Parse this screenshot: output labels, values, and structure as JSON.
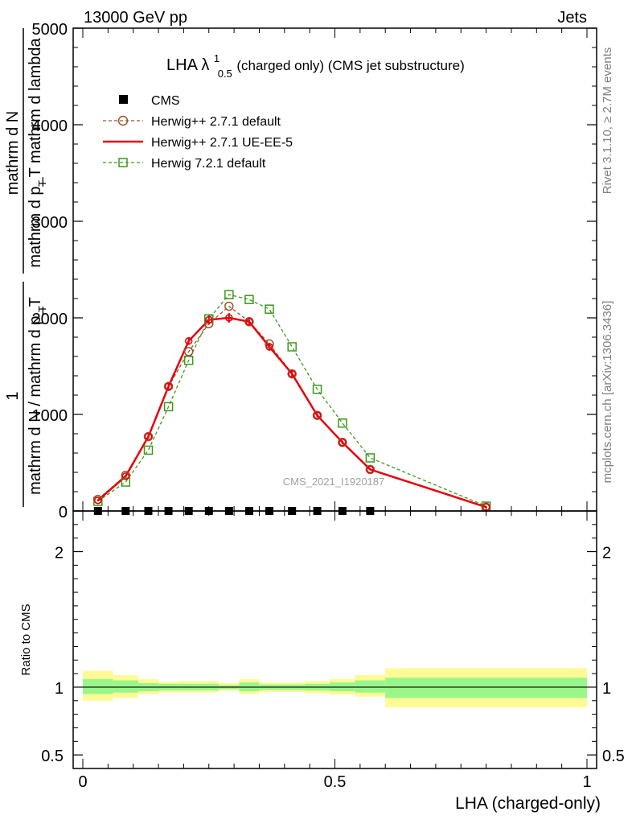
{
  "header": {
    "left": "13000 GeV pp",
    "right": "Jets"
  },
  "side_labels": {
    "rivet": "Rivet 3.1.10, ≥ 2.7M events",
    "mcplots": "mcplots.cern.ch [arXiv:1306.3436]"
  },
  "y_axis_label": {
    "one": "1",
    "denominator": "mathrm d N / mathrm d p_T",
    "numerator_line1": "mathrm d N",
    "numerator_line2": "mathrm d p_T mathrm d lambda",
    "sub_T_1": "T",
    "sub_T_2": "T"
  },
  "colors": {
    "cms": "#000000",
    "herwig_default": "#a0522d",
    "herwig_ueee5": "#e8000b",
    "herwig72": "#3a9a1a",
    "band_inner": "#99f78a",
    "band_outer": "#fffa96"
  },
  "chart_data": [
    {
      "type": "line",
      "title": "LHA λ",
      "title_sup": "1",
      "title_sub": "0.5",
      "title_suffix": " (charged only) (CMS jet substructure)",
      "watermark": "CMS_2021_I1920187",
      "xlabel": "LHA (charged-only)",
      "xlim": [
        0,
        1
      ],
      "ylim": [
        0,
        5000
      ],
      "y_ticks": [
        0,
        1000,
        2000,
        3000,
        4000,
        5000
      ],
      "y_tick_labels": [
        "0",
        "1000",
        "2000",
        "3000",
        "4000",
        "5000"
      ],
      "legend_position": "top-left",
      "legend": [
        "CMS",
        "Herwig++ 2.7.1 default",
        "Herwig++ 2.7.1 UE-EE-5",
        "Herwig 7.2.1 default"
      ],
      "series": [
        {
          "name": "CMS",
          "style": "square-marker",
          "x": [
            0.03,
            0.085,
            0.13,
            0.17,
            0.21,
            0.25,
            0.29,
            0.33,
            0.37,
            0.415,
            0.465,
            0.515,
            0.57
          ],
          "values": [
            0,
            0,
            0,
            0,
            0,
            0,
            0,
            0,
            0,
            0,
            0,
            0,
            0
          ]
        },
        {
          "name": "Herwig++ 2.7.1 default",
          "style": "dashed-circle",
          "x": [
            0.03,
            0.085,
            0.13,
            0.17,
            0.21,
            0.25,
            0.29,
            0.33,
            0.37,
            0.415,
            0.465,
            0.515,
            0.57,
            0.8
          ],
          "values": [
            120,
            370,
            770,
            1290,
            1650,
            1940,
            2120,
            1960,
            1730,
            1420,
            990,
            710,
            430,
            40
          ]
        },
        {
          "name": "Herwig++ 2.7.1 UE-EE-5",
          "style": "solid-circle",
          "x": [
            0.03,
            0.085,
            0.13,
            0.17,
            0.21,
            0.25,
            0.29,
            0.33,
            0.37,
            0.415,
            0.465,
            0.515,
            0.57,
            0.8
          ],
          "values": [
            110,
            360,
            770,
            1290,
            1760,
            1980,
            2000,
            1960,
            1700,
            1420,
            990,
            710,
            430,
            40
          ],
          "errors": [
            10,
            10,
            20,
            30,
            40,
            50,
            50,
            40,
            40,
            30,
            20,
            20,
            10,
            5
          ]
        },
        {
          "name": "Herwig 7.2.1 default",
          "style": "dashed-square",
          "x": [
            0.03,
            0.085,
            0.13,
            0.17,
            0.21,
            0.25,
            0.29,
            0.33,
            0.37,
            0.415,
            0.465,
            0.515,
            0.57,
            0.8
          ],
          "values": [
            100,
            300,
            630,
            1080,
            1560,
            1990,
            2240,
            2190,
            2090,
            1700,
            1260,
            910,
            550,
            50
          ]
        }
      ]
    },
    {
      "type": "area",
      "ylabel": "Ratio to CMS",
      "xlabel": "LHA (charged-only)",
      "xlim": [
        0,
        1
      ],
      "ylim": [
        0.4,
        2.3
      ],
      "y_ticks": [
        0.5,
        1,
        2
      ],
      "y_tick_labels": [
        "0.5",
        "1",
        "2"
      ],
      "x_ticks": [
        0,
        0.5,
        1
      ],
      "x_tick_labels": [
        "0",
        "0.5",
        "1"
      ],
      "reference": 1.0,
      "bins": [
        {
          "x0": 0.0,
          "x1": 0.06,
          "inner": [
            0.95,
            1.06
          ],
          "outer": [
            0.9,
            1.12
          ]
        },
        {
          "x0": 0.06,
          "x1": 0.11,
          "inner": [
            0.96,
            1.05
          ],
          "outer": [
            0.92,
            1.09
          ]
        },
        {
          "x0": 0.11,
          "x1": 0.15,
          "inner": [
            0.97,
            1.03
          ],
          "outer": [
            0.95,
            1.06
          ]
        },
        {
          "x0": 0.15,
          "x1": 0.19,
          "inner": [
            0.975,
            1.025
          ],
          "outer": [
            0.96,
            1.04
          ]
        },
        {
          "x0": 0.19,
          "x1": 0.23,
          "inner": [
            0.975,
            1.025
          ],
          "outer": [
            0.96,
            1.045
          ]
        },
        {
          "x0": 0.23,
          "x1": 0.27,
          "inner": [
            0.975,
            1.025
          ],
          "outer": [
            0.96,
            1.045
          ]
        },
        {
          "x0": 0.27,
          "x1": 0.31,
          "inner": [
            0.985,
            1.015
          ],
          "outer": [
            0.975,
            1.03
          ]
        },
        {
          "x0": 0.31,
          "x1": 0.35,
          "inner": [
            0.97,
            1.035
          ],
          "outer": [
            0.95,
            1.06
          ]
        },
        {
          "x0": 0.35,
          "x1": 0.39,
          "inner": [
            0.98,
            1.02
          ],
          "outer": [
            0.965,
            1.035
          ]
        },
        {
          "x0": 0.39,
          "x1": 0.44,
          "inner": [
            0.98,
            1.02
          ],
          "outer": [
            0.965,
            1.035
          ]
        },
        {
          "x0": 0.44,
          "x1": 0.49,
          "inner": [
            0.975,
            1.025
          ],
          "outer": [
            0.955,
            1.045
          ]
        },
        {
          "x0": 0.49,
          "x1": 0.54,
          "inner": [
            0.97,
            1.035
          ],
          "outer": [
            0.945,
            1.06
          ]
        },
        {
          "x0": 0.54,
          "x1": 0.6,
          "inner": [
            0.96,
            1.05
          ],
          "outer": [
            0.93,
            1.09
          ]
        },
        {
          "x0": 0.6,
          "x1": 1.0,
          "inner": [
            0.92,
            1.07
          ],
          "outer": [
            0.85,
            1.14
          ]
        }
      ]
    }
  ]
}
